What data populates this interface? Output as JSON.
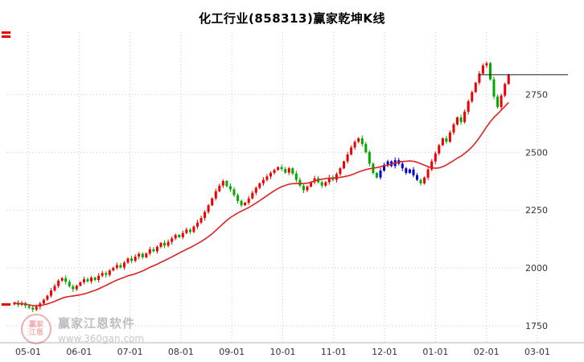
{
  "title": "化工行业(858313)赢家乾坤K线",
  "watermark": {
    "name": "赢家江恩软件",
    "url": "www.360gan.com",
    "logo_top": "赢家",
    "logo_bottom": "江恩"
  },
  "chart_data": {
    "type": "candlestick",
    "title": "化工行业(858313)赢家乾坤K线",
    "x_labels": [
      "05-01",
      "06-01",
      "07-01",
      "08-01",
      "09-01",
      "10-01",
      "11-01",
      "12-01",
      "01-01",
      "02-01",
      "03-01"
    ],
    "y_ticks": [
      1750,
      2000,
      2250,
      2500,
      2750
    ],
    "y_range": [
      1680,
      3020
    ],
    "grid": true,
    "legend": "none",
    "closes": [
      1850,
      1840,
      1848,
      1836,
      1828,
      1820,
      1832,
      1846,
      1862,
      1880,
      1902,
      1922,
      1945,
      1956,
      1940,
      1921,
      1908,
      1923,
      1938,
      1951,
      1942,
      1958,
      1948,
      1966,
      1978,
      1970,
      1989,
      2001,
      2012,
      2002,
      2023,
      2041,
      2031,
      2049,
      2061,
      2046,
      2063,
      2081,
      2072,
      2091,
      2108,
      2096,
      2113,
      2128,
      2143,
      2133,
      2151,
      2166,
      2156,
      2179,
      2196,
      2216,
      2242,
      2271,
      2301,
      2332,
      2356,
      2376,
      2354,
      2340,
      2315,
      2290,
      2271,
      2282,
      2301,
      2325,
      2346,
      2366,
      2381,
      2396,
      2411,
      2424,
      2436,
      2428,
      2412,
      2431,
      2408,
      2381,
      2356,
      2336,
      2352,
      2371,
      2388,
      2371,
      2356,
      2371,
      2391,
      2381,
      2406,
      2431,
      2461,
      2491,
      2521,
      2546,
      2561,
      2536,
      2501,
      2451,
      2411,
      2391,
      2421,
      2446,
      2461,
      2441,
      2466,
      2451,
      2431,
      2411,
      2426,
      2401,
      2381,
      2366,
      2391,
      2426,
      2461,
      2496,
      2531,
      2561,
      2546,
      2586,
      2621,
      2651,
      2631,
      2676,
      2721,
      2761,
      2801,
      2841,
      2876,
      2886,
      2816,
      2741,
      2696,
      2746,
      2796,
      2836
    ],
    "ma_window": 20,
    "last_price": 2836,
    "special_range": [
      100,
      110
    ],
    "colors": {
      "up": "#ee0000",
      "down": "#00a800",
      "special": "#0000cc",
      "ma": "#dd2222",
      "grid": "#c9c9c9",
      "axis_line": "#b5b5b5",
      "label": "#333333",
      "price_line": "#1a1a1a"
    }
  }
}
